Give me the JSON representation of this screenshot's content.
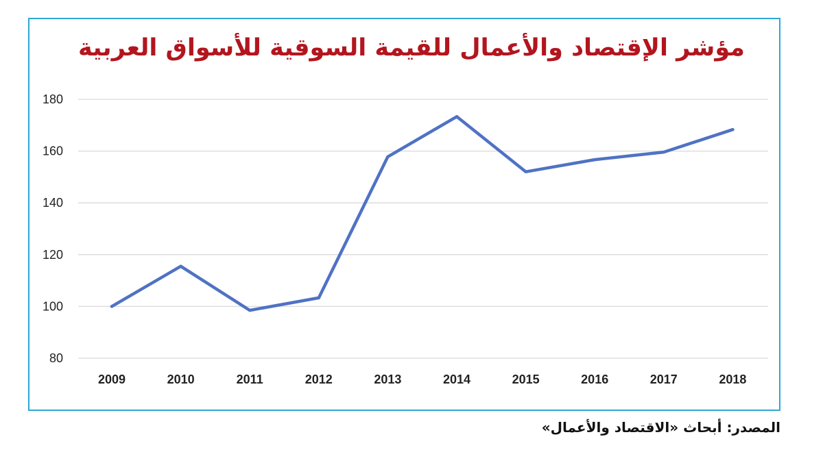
{
  "chart_data": {
    "type": "line",
    "title": "مؤشر الإقتصاد والأعمال للقيمة السوقية للأسواق العربية",
    "x": [
      "2009",
      "2010",
      "2011",
      "2012",
      "2013",
      "2014",
      "2015",
      "2016",
      "2017",
      "2018"
    ],
    "series": [
      {
        "values": [
          100,
          115.5,
          98.5,
          103.3,
          157.8,
          173.3,
          152,
          156.7,
          159.6,
          168.3
        ]
      }
    ],
    "ylim": [
      80,
      180
    ],
    "yticks": [
      80,
      100,
      120,
      140,
      160,
      180
    ],
    "xlabel": "",
    "ylabel": "",
    "grid": true,
    "line_color": "#4f72c4"
  },
  "source": "المصدر: أبحاث «الاقتصاد والأعمال»",
  "colors": {
    "title": "#b3151e",
    "frame": "#2ea7d6"
  }
}
